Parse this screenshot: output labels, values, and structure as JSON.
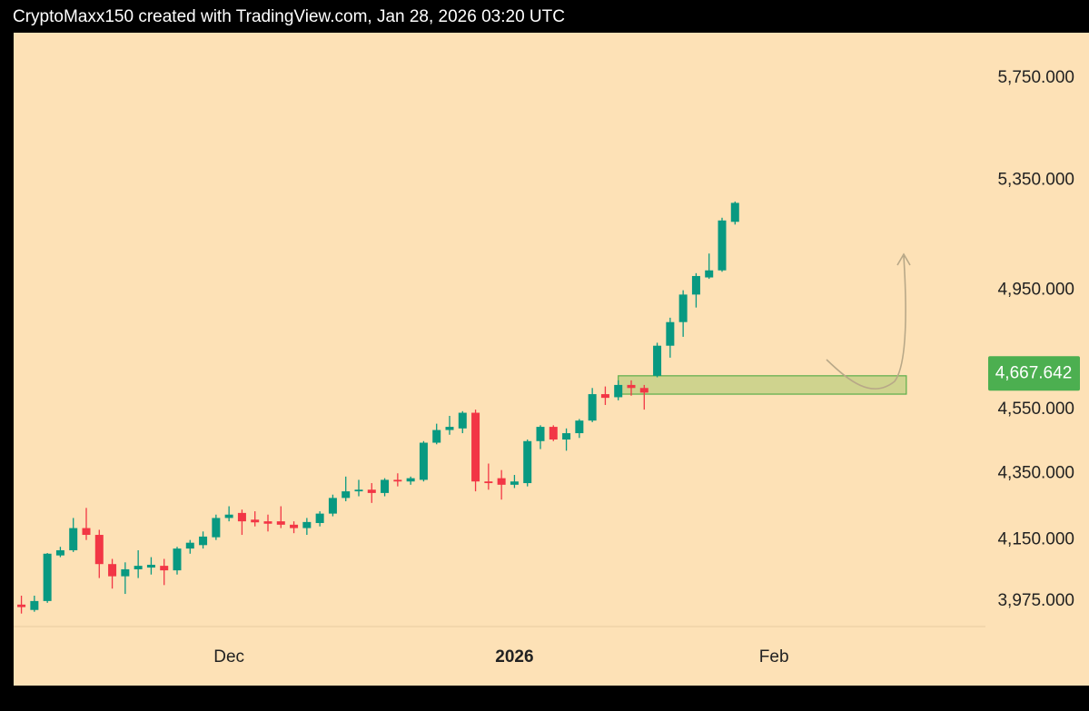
{
  "chart_data": {
    "type": "candlestick",
    "title": "CryptoMaxx150 created with TradingView.com, Jan 28, 2026 03:20 UTC",
    "x": [
      0,
      1,
      2,
      3,
      4,
      5,
      6,
      7,
      8,
      9,
      10,
      11,
      12,
      13,
      14,
      15,
      16,
      17,
      18,
      19,
      20,
      21,
      22,
      23,
      24,
      25,
      26,
      27,
      28,
      29,
      30,
      31,
      32,
      33,
      34,
      35,
      36,
      37,
      38,
      39,
      40,
      41,
      42,
      43,
      44,
      45,
      46,
      47,
      48,
      49,
      50,
      51,
      52,
      53,
      54,
      55
    ],
    "open": [
      3965,
      3950,
      3975,
      4105,
      4120,
      4185,
      4165,
      4080,
      4045,
      4065,
      4070,
      4075,
      4062,
      4125,
      4135,
      4158,
      4215,
      4230,
      4210,
      4205,
      4205,
      4195,
      4185,
      4200,
      4228,
      4275,
      4295,
      4300,
      4290,
      4330,
      4325,
      4330,
      4445,
      4485,
      4490,
      4540,
      4325,
      4335,
      4315,
      4320,
      4450,
      4495,
      4455,
      4475,
      4515,
      4600,
      4590,
      4630,
      4620,
      4660,
      4760,
      4840,
      4935,
      4995,
      5020,
      5195
    ],
    "high": [
      3990,
      3990,
      4112,
      4130,
      4215,
      4245,
      4180,
      4095,
      4085,
      4120,
      4100,
      4095,
      4130,
      4150,
      4175,
      4225,
      4250,
      4240,
      4235,
      4225,
      4250,
      4205,
      4215,
      4235,
      4285,
      4340,
      4330,
      4320,
      4335,
      4350,
      4340,
      4450,
      4505,
      4530,
      4545,
      4550,
      4380,
      4360,
      4345,
      4455,
      4500,
      4500,
      4490,
      4520,
      4620,
      4625,
      4645,
      4645,
      4630,
      4770,
      4855,
      4950,
      5010,
      5080,
      5210,
      5270
    ],
    "low": [
      3940,
      3945,
      3970,
      4100,
      4115,
      4150,
      4040,
      4010,
      3995,
      4040,
      4050,
      4020,
      4050,
      4110,
      4125,
      4150,
      4205,
      4165,
      4190,
      4175,
      4185,
      4170,
      4165,
      4190,
      4220,
      4265,
      4280,
      4260,
      4280,
      4310,
      4315,
      4325,
      4440,
      4470,
      4475,
      4295,
      4300,
      4270,
      4305,
      4310,
      4425,
      4450,
      4420,
      4460,
      4510,
      4565,
      4580,
      4595,
      4550,
      4655,
      4720,
      4790,
      4890,
      4990,
      5015,
      5185
    ],
    "close": [
      3958,
      3975,
      4110,
      4120,
      4185,
      4165,
      4080,
      4045,
      4065,
      4075,
      4078,
      4062,
      4125,
      4142,
      4160,
      4215,
      4225,
      4205,
      4202,
      4198,
      4195,
      4185,
      4203,
      4228,
      4275,
      4295,
      4300,
      4290,
      4330,
      4325,
      4335,
      4445,
      4485,
      4495,
      4540,
      4325,
      4320,
      4315,
      4325,
      4450,
      4495,
      4455,
      4475,
      4515,
      4600,
      4588,
      4630,
      4620,
      4605,
      4760,
      4840,
      4935,
      5000,
      5020,
      5200,
      5265
    ],
    "up_color": "#089981",
    "down_color": "#f23645",
    "xlim": [
      -0.6,
      74.3
    ],
    "xticks": [
      {
        "value": 16,
        "label": "Dec"
      },
      {
        "value": 38,
        "label": "2026"
      },
      {
        "value": 58,
        "label": "Feb"
      }
    ],
    "ylim": [
      3904,
      5937
    ],
    "log_scale": true,
    "yticks": [
      {
        "value": 5750,
        "label": "5,750.000"
      },
      {
        "value": 5350,
        "label": "5,350.000"
      },
      {
        "value": 4950,
        "label": "4,950.000"
      },
      {
        "value": 4550,
        "label": "4,550.000"
      },
      {
        "value": 4350,
        "label": "4,350.000"
      },
      {
        "value": 4150,
        "label": "4,150.000"
      },
      {
        "value": 3975,
        "label": "3,975.000"
      }
    ],
    "zone": {
      "x": [
        46,
        68.2
      ],
      "y": [
        4600,
        4660
      ]
    },
    "price_label": {
      "value": 4667.642,
      "label": "4,667.642"
    }
  }
}
